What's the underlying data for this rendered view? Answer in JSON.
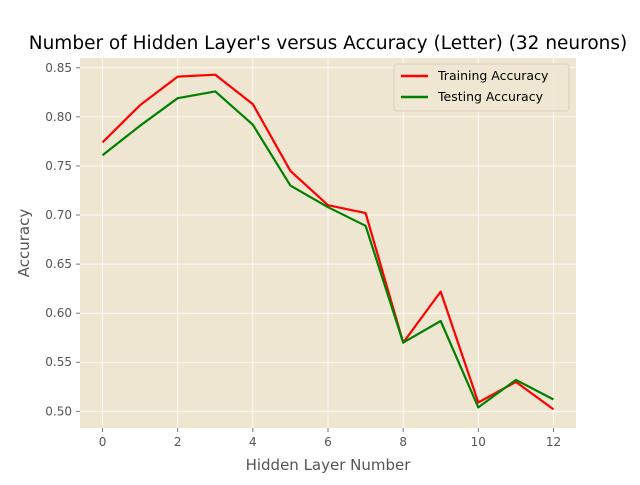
{
  "chart_data": {
    "type": "line",
    "title": "Number of Hidden Layer's versus Accuracy (Letter) (32 neurons)",
    "xlabel": "Hidden Layer Number",
    "ylabel": "Accuracy",
    "xlim": [
      -0.6,
      12.6
    ],
    "ylim": [
      0.483,
      0.86
    ],
    "xticks": [
      0,
      2,
      4,
      6,
      8,
      10,
      12
    ],
    "yticks": [
      0.5,
      0.55,
      0.6,
      0.65,
      0.7,
      0.75,
      0.8,
      0.85
    ],
    "grid": true,
    "legend_position": "top-right",
    "x": [
      0,
      1,
      2,
      3,
      4,
      5,
      6,
      7,
      8,
      9,
      10,
      11,
      12
    ],
    "series": [
      {
        "name": "Training Accuracy",
        "color": "#ff0000",
        "values": [
          0.774,
          0.812,
          0.841,
          0.843,
          0.813,
          0.745,
          0.71,
          0.702,
          0.57,
          0.622,
          0.509,
          0.53,
          0.502
        ]
      },
      {
        "name": "Testing Accuracy",
        "color": "#008000",
        "values": [
          0.761,
          0.791,
          0.819,
          0.826,
          0.792,
          0.73,
          0.708,
          0.689,
          0.57,
          0.592,
          0.504,
          0.532,
          0.512
        ]
      }
    ],
    "colors": {
      "plot_background": "#efe6d2",
      "grid": "#ffffff",
      "tick_text": "#555555"
    }
  }
}
